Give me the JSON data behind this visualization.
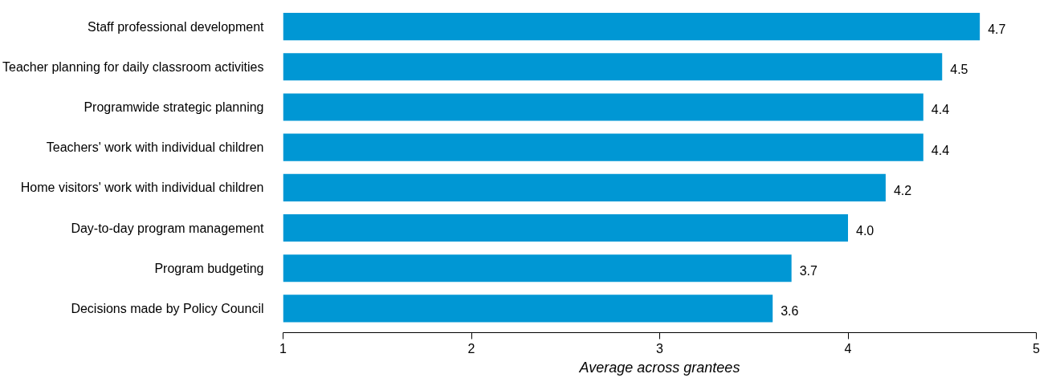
{
  "chart_data": {
    "type": "bar",
    "orientation": "horizontal",
    "xlabel": "Average across grantees",
    "categories": [
      "Staff professional development",
      "Teacher planning for daily classroom activities",
      "Programwide strategic planning",
      "Teachers' work with individual children",
      "Home visitors' work with individual children",
      "Day-to-day program management",
      "Program budgeting",
      "Decisions made by Policy Council"
    ],
    "values": [
      4.7,
      4.5,
      4.4,
      4.4,
      4.2,
      4.0,
      3.7,
      3.6
    ],
    "value_labels": [
      "4.7",
      "4.5",
      "4.4",
      "4.4",
      "4.2",
      "4.0",
      "3.7",
      "3.6"
    ],
    "color": "#0097d4",
    "xlim": [
      1,
      5
    ],
    "xticks": [
      1,
      2,
      3,
      4,
      5
    ],
    "grid": false
  }
}
